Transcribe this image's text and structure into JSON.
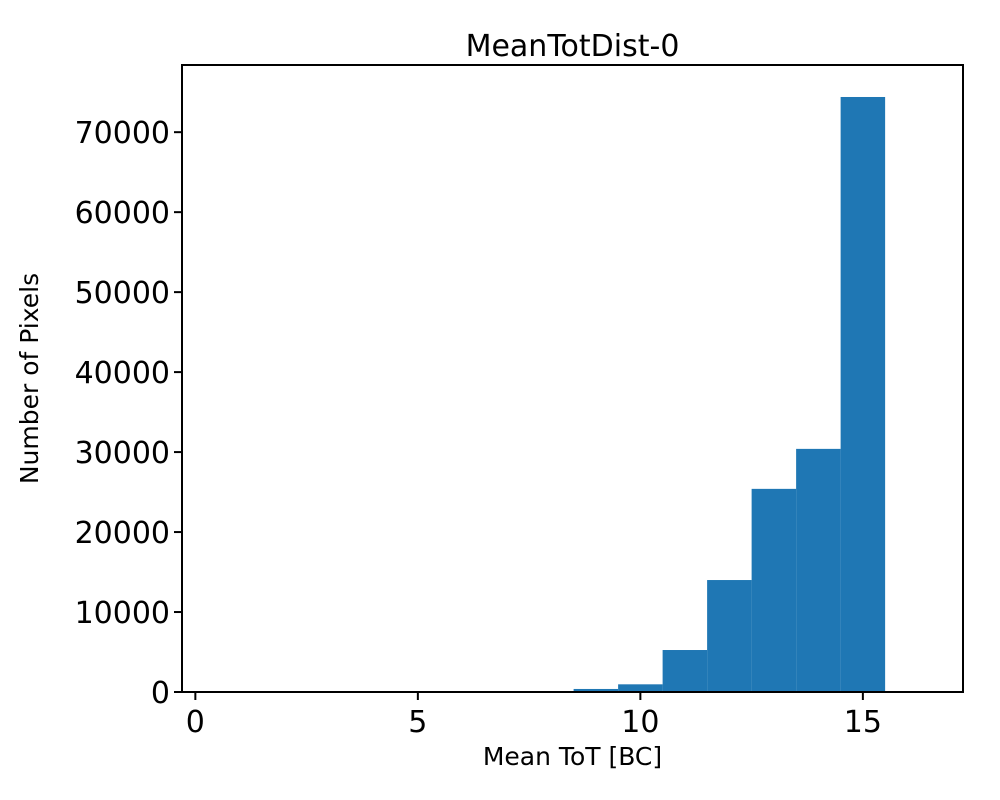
{
  "figure": {
    "title": "MeanTotDist-0",
    "xlabel": "Mean ToT [BC]",
    "ylabel": "Number of Pixels"
  },
  "chart_data": {
    "type": "bar",
    "subtype": "histogram",
    "title": "MeanTotDist-0",
    "xlabel": "Mean ToT [BC]",
    "ylabel": "Number of Pixels",
    "bin_edges": [
      0.5,
      1.5,
      2.5,
      3.5,
      4.5,
      5.5,
      6.5,
      7.5,
      8.5,
      9.5,
      10.5,
      11.5,
      12.5,
      13.5,
      14.5,
      15.5,
      16.5
    ],
    "counts": [
      0,
      0,
      0,
      0,
      0,
      0,
      0,
      0,
      380,
      960,
      5250,
      14000,
      25400,
      30400,
      74400,
      0
    ],
    "bar_color": "#1f77b4",
    "axis_color": "#000000",
    "background_color": "#ffffff",
    "xlim": [
      -0.3,
      17.25
    ],
    "ylim": [
      0,
      78400
    ],
    "xticks": [
      0,
      5,
      10,
      15
    ],
    "yticks": [
      0,
      10000,
      20000,
      30000,
      40000,
      50000,
      60000,
      70000
    ],
    "grid": false,
    "legend": null
  }
}
